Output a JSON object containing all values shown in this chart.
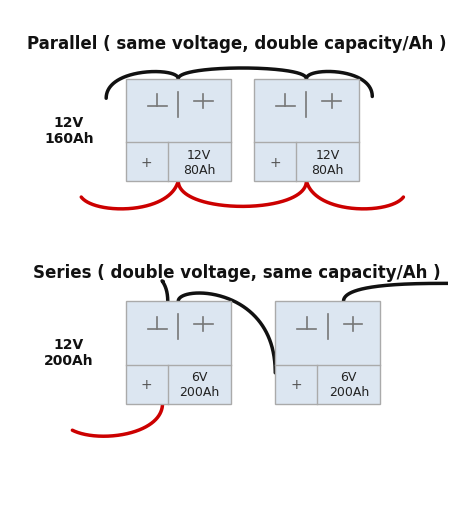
{
  "parallel_title": "Parallel ( same voltage, double capacity/Ah )",
  "series_title": "Series ( double voltage, same capacity/Ah )",
  "parallel_label": "12V\n160Ah",
  "series_label": "12V\n200Ah",
  "bat1_parallel": "12V\n80Ah",
  "bat2_parallel": "12V\n80Ah",
  "bat1_series": "6V\n200Ah",
  "bat2_series": "6V\n200Ah",
  "battery_fill": "#dce6f1",
  "battery_edge": "#aaaaaa",
  "bg_color": "#ffffff",
  "wire_black": "#111111",
  "wire_red": "#cc0000",
  "title_fontsize": 12,
  "label_fontsize": 10,
  "bat_label_fontsize": 9
}
